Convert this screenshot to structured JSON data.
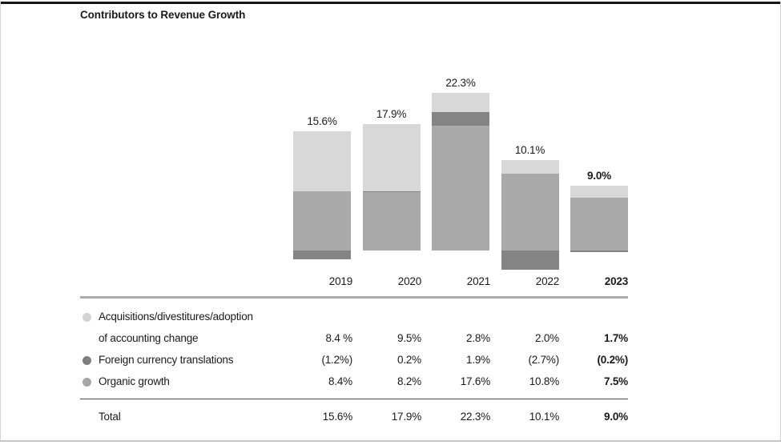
{
  "page": {
    "title": "Contributors to Revenue Growth"
  },
  "chart_data": {
    "type": "bar",
    "stacked": true,
    "title": "Contributors to Revenue Growth",
    "categories": [
      "2019",
      "2020",
      "2021",
      "2022",
      "2023"
    ],
    "emphasized_category": "2023",
    "series": [
      {
        "name": "Acquisitions/divestitures/adoption of accounting change",
        "color": "#d8d8d8",
        "values": [
          8.4,
          9.5,
          2.8,
          2.0,
          1.7
        ]
      },
      {
        "name": "Foreign currency translations",
        "color": "#848484",
        "values": [
          -1.2,
          0.2,
          1.9,
          -2.7,
          -0.2
        ]
      },
      {
        "name": "Organic growth",
        "color": "#a9a9a9",
        "values": [
          8.4,
          8.2,
          17.6,
          10.8,
          7.5
        ]
      }
    ],
    "totals": [
      15.6,
      17.9,
      22.3,
      10.1,
      9.0
    ],
    "total_labels": [
      "15.6%",
      "17.9%",
      "22.3%",
      "10.1%",
      "9.0%"
    ],
    "axes_shown": false,
    "gridlines": false,
    "legend_position": "table-below",
    "note": "negative foreign-currency segments drawn below baseline"
  },
  "table": {
    "rows": [
      {
        "bullet_color": "#d3d3d3",
        "bullet_name": "acquisitions-legend-dot",
        "label_lines": [
          "Acquisitions/divestitures/adoption",
          "of accounting change"
        ],
        "values": [
          "8.4 %",
          "9.5%",
          "2.8%",
          "2.0%",
          "1.7%"
        ]
      },
      {
        "bullet_color": "#7f7f7f",
        "bullet_name": "foreign-currency-legend-dot",
        "label_lines": [
          "Foreign currency translations"
        ],
        "values": [
          "(1.2%)",
          "0.2%",
          "1.9%",
          "(2.7%)",
          "(0.2%)"
        ]
      },
      {
        "bullet_color": "#a6a6a6",
        "bullet_name": "organic-growth-legend-dot",
        "label_lines": [
          "Organic growth"
        ],
        "values": [
          "8.4%",
          "8.2%",
          "17.6%",
          "10.8%",
          "7.5%"
        ]
      }
    ],
    "total_row": {
      "label": "Total",
      "values": [
        "15.6%",
        "17.9%",
        "22.3%",
        "10.1%",
        "9.0%"
      ]
    },
    "bold_column_index": 4
  },
  "colors": {
    "text": "#1a1a1a",
    "light_segment": "#d8d8d8",
    "dark_segment": "#848484",
    "medium_segment": "#a9a9a9",
    "rule_top": "#ababab",
    "rule_total": "#4a4a4a",
    "page_top_border": "#161616",
    "page_bottom_border": "#c6c6c6"
  }
}
